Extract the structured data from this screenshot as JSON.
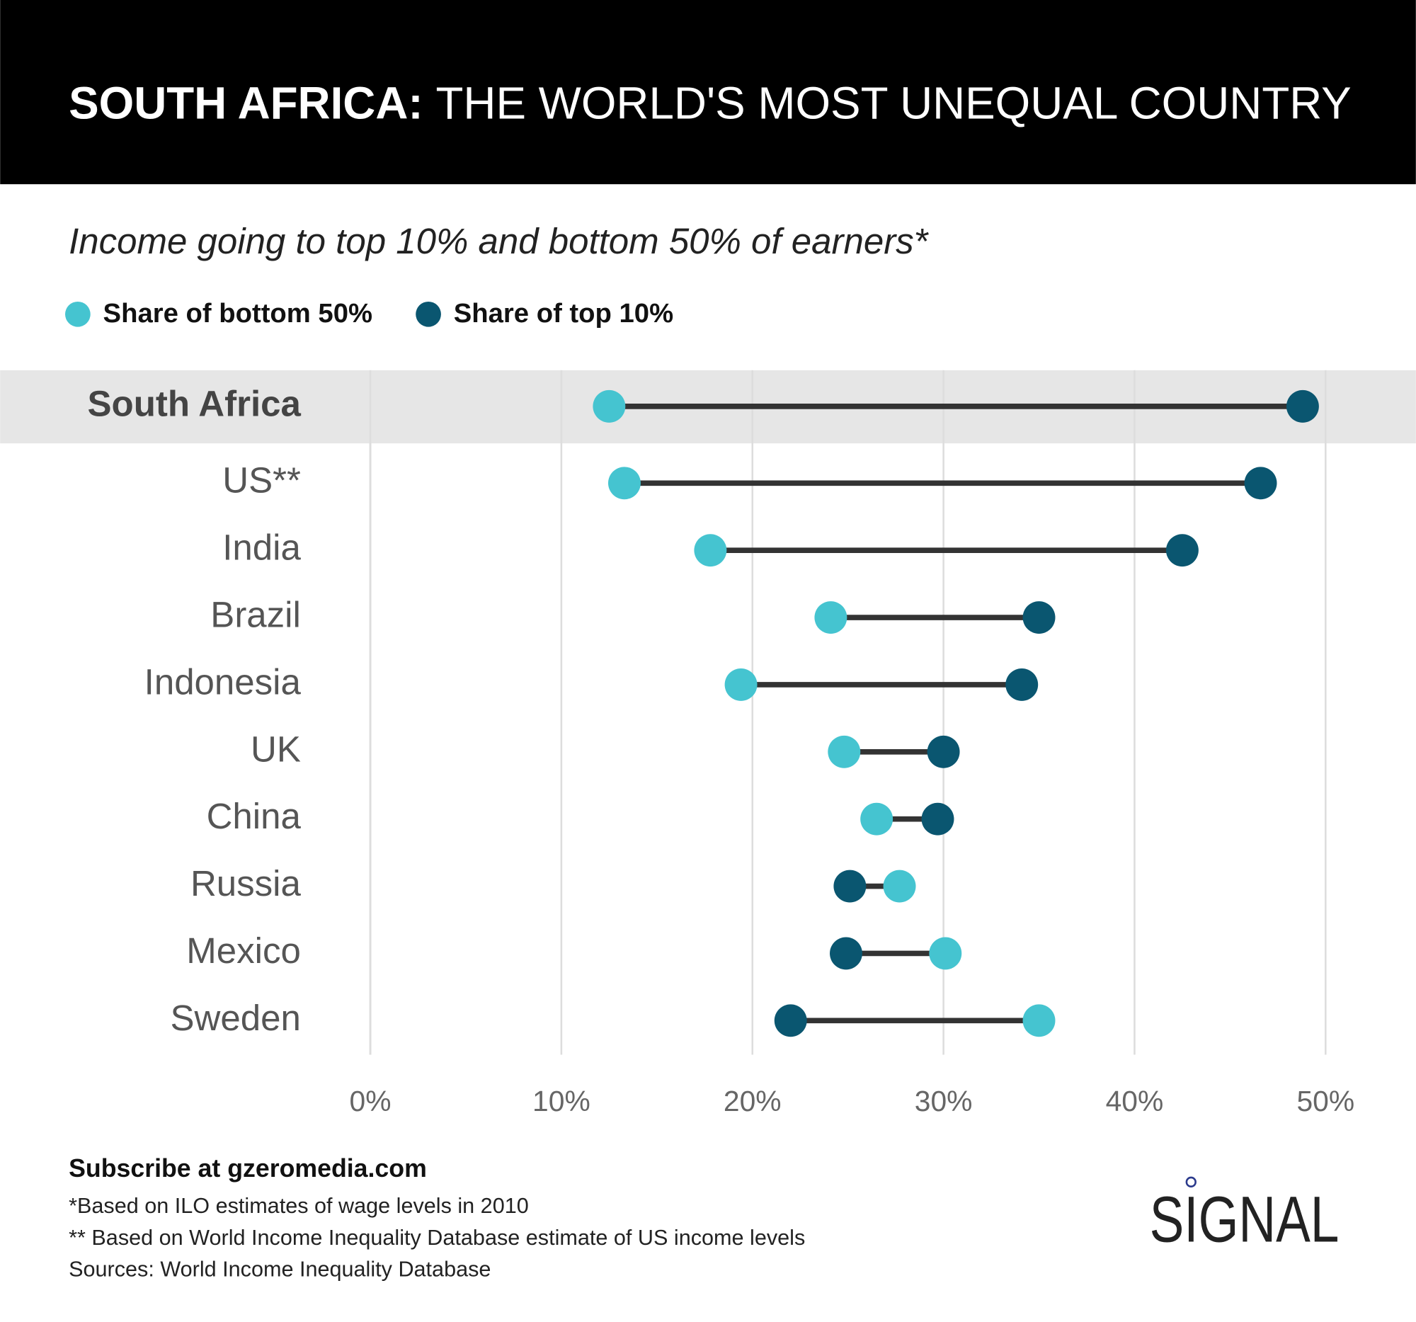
{
  "chart_data": {
    "type": "dumbbell",
    "title": [
      "SOUTH AFRICA:",
      "THE WORLD'S MOST UNEQUAL COUNTRY"
    ],
    "subtitle": "Income going to top 10% and bottom 50% of earners*",
    "categories": [
      "South Africa",
      "US**",
      "India",
      "Brazil",
      "Indonesia",
      "UK",
      "China",
      "Russia",
      "Mexico",
      "Sweden"
    ],
    "highlight_index": 0,
    "series": [
      {
        "name": "Share of bottom 50%",
        "color": "#45c4d0",
        "values": [
          12.5,
          13.3,
          17.8,
          24.1,
          19.4,
          24.8,
          26.5,
          27.7,
          30.1,
          35.0
        ]
      },
      {
        "name": "Share of top 10%",
        "color": "#0a5670",
        "values": [
          48.8,
          46.6,
          42.5,
          35.0,
          34.1,
          30.0,
          29.7,
          25.1,
          24.9,
          22.0
        ]
      }
    ],
    "xlim": [
      0,
      50
    ],
    "xticks": [
      {
        "value": 0,
        "label": "0%"
      },
      {
        "value": 10,
        "label": "10%"
      },
      {
        "value": 20,
        "label": "20%"
      },
      {
        "value": 30,
        "label": "30%"
      },
      {
        "value": 40,
        "label": "40%"
      },
      {
        "value": 50,
        "label": "50%"
      }
    ],
    "grid": true,
    "footer_bold": "Subscribe at gzeromedia.com",
    "notes": [
      "*Based on ILO estimates of wage levels in 2010",
      "** Based on World Income Inequality Database estimate of US income levels",
      "Sources: World Income Inequality Database"
    ],
    "logo": "SIGNAL"
  }
}
